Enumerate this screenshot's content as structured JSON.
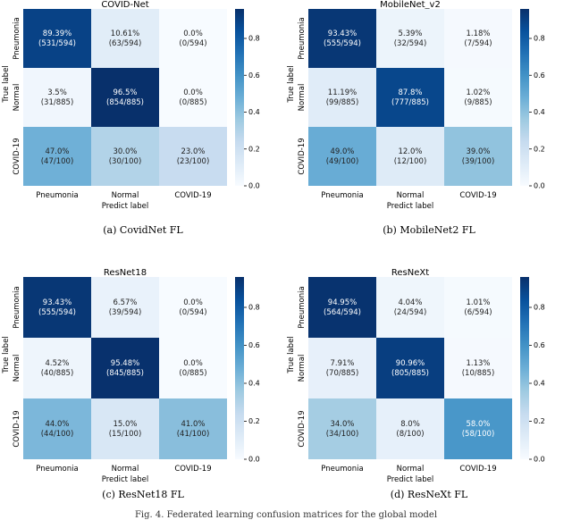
{
  "figure_caption": "Fig. 4.   Federated learning confusion matrices for the global model",
  "shared": {
    "categories": [
      "Pneumonia",
      "Normal",
      "COVID-19"
    ],
    "row_totals": [
      594,
      885,
      100
    ],
    "xlabel": "Predict label",
    "ylabel": "True label",
    "colorbar_ticks": [
      "0.0",
      "0.2",
      "0.4",
      "0.6",
      "0.8"
    ],
    "colorbar_tick_values": [
      0,
      0.2,
      0.4,
      0.6,
      0.8
    ],
    "colorbar_max": 0.96,
    "colormap": [
      "#f7fbff",
      "#deebf7",
      "#c6dbef",
      "#9ecae1",
      "#6baed6",
      "#4292c6",
      "#2171b5",
      "#08519c",
      "#08306b"
    ]
  },
  "chart_data": [
    {
      "type": "heatmap",
      "title": "COVID-Net",
      "caption": "(a)  CovidNet  FL",
      "counts": [
        [
          531,
          63,
          0
        ],
        [
          31,
          854,
          0
        ],
        [
          47,
          30,
          23
        ]
      ],
      "percent_labels": [
        [
          "89.39%",
          "10.61%",
          "0.0%"
        ],
        [
          "3.5%",
          "96.5%",
          "0.0%"
        ],
        [
          "47.0%",
          "30.0%",
          "23.0%"
        ]
      ],
      "count_labels": [
        [
          "(531/594)",
          "(63/594)",
          "(0/594)"
        ],
        [
          "(31/885)",
          "(854/885)",
          "(0/885)"
        ],
        [
          "(47/100)",
          "(30/100)",
          "(23/100)"
        ]
      ]
    },
    {
      "type": "heatmap",
      "title": "MobileNet_v2",
      "caption": "(b)  MobileNet2  FL",
      "counts": [
        [
          555,
          32,
          7
        ],
        [
          99,
          777,
          9
        ],
        [
          49,
          12,
          39
        ]
      ],
      "percent_labels": [
        [
          "93.43%",
          "5.39%",
          "1.18%"
        ],
        [
          "11.19%",
          "87.8%",
          "1.02%"
        ],
        [
          "49.0%",
          "12.0%",
          "39.0%"
        ]
      ],
      "count_labels": [
        [
          "(555/594)",
          "(32/594)",
          "(7/594)"
        ],
        [
          "(99/885)",
          "(777/885)",
          "(9/885)"
        ],
        [
          "(49/100)",
          "(12/100)",
          "(39/100)"
        ]
      ]
    },
    {
      "type": "heatmap",
      "title": "ResNet18",
      "caption": "(c)  ResNet18  FL",
      "counts": [
        [
          555,
          39,
          0
        ],
        [
          40,
          845,
          0
        ],
        [
          44,
          15,
          41
        ]
      ],
      "percent_labels": [
        [
          "93.43%",
          "6.57%",
          "0.0%"
        ],
        [
          "4.52%",
          "95.48%",
          "0.0%"
        ],
        [
          "44.0%",
          "15.0%",
          "41.0%"
        ]
      ],
      "count_labels": [
        [
          "(555/594)",
          "(39/594)",
          "(0/594)"
        ],
        [
          "(40/885)",
          "(845/885)",
          "(0/885)"
        ],
        [
          "(44/100)",
          "(15/100)",
          "(41/100)"
        ]
      ]
    },
    {
      "type": "heatmap",
      "title": "ResNeXt",
      "caption": "(d)  ResNeXt  FL",
      "counts": [
        [
          564,
          24,
          6
        ],
        [
          70,
          805,
          10
        ],
        [
          34,
          8,
          58
        ]
      ],
      "percent_labels": [
        [
          "94.95%",
          "4.04%",
          "1.01%"
        ],
        [
          "7.91%",
          "90.96%",
          "1.13%"
        ],
        [
          "34.0%",
          "8.0%",
          "58.0%"
        ]
      ],
      "count_labels": [
        [
          "(564/594)",
          "(24/594)",
          "(6/594)"
        ],
        [
          "(70/885)",
          "(805/885)",
          "(10/885)"
        ],
        [
          "(34/100)",
          "(8/100)",
          "(58/100)"
        ]
      ]
    }
  ]
}
